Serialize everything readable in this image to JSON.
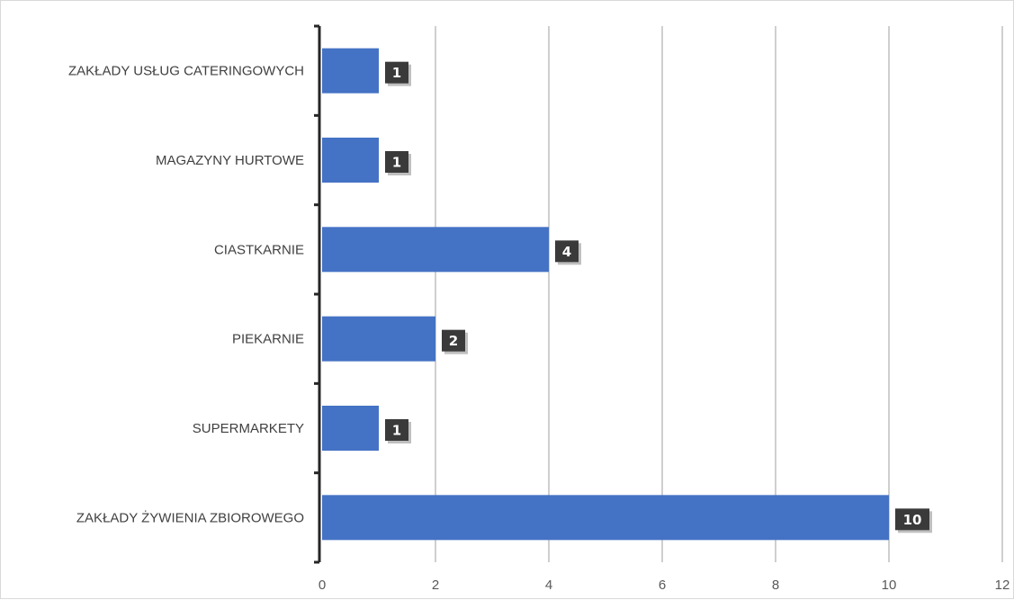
{
  "chart_data": {
    "type": "bar",
    "orientation": "horizontal",
    "title": "",
    "xlabel": "",
    "ylabel": "",
    "categories": [
      "ZAKŁADY USŁUG CATERINGOWYCH",
      "MAGAZYNY HURTOWE",
      "CIASTKARNIE",
      "PIEKARNIE",
      "SUPERMARKETY",
      "ZAKŁADY ŻYWIENIA ZBIOROWEGO"
    ],
    "values": [
      1,
      1,
      4,
      2,
      1,
      10
    ],
    "xlim": [
      0,
      12
    ],
    "xticks": [
      "0",
      "2",
      "4",
      "6",
      "8",
      "10",
      "12"
    ],
    "grid": "vertical",
    "legend": "none",
    "bar_color": "#4472c4",
    "data_label_background": "#3a3a3a",
    "data_label_color": "#ffffff",
    "gridline_color": "#bfbfbf",
    "axis_color": "#262626"
  }
}
